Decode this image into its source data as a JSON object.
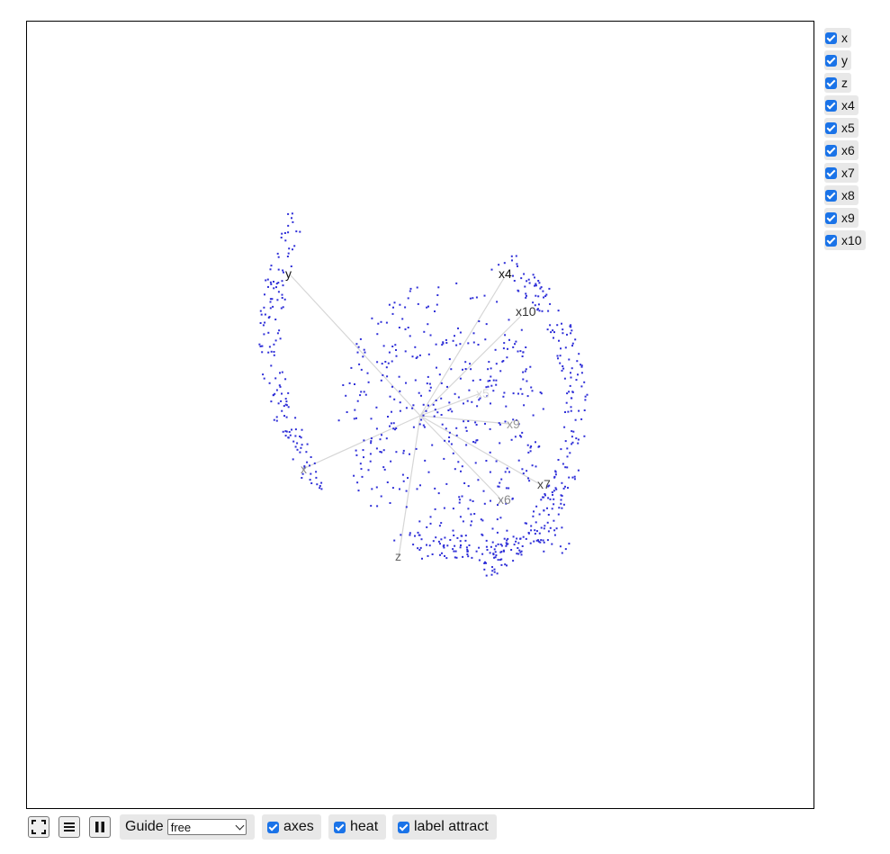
{
  "variables": [
    {
      "label": "x",
      "checked": true
    },
    {
      "label": "y",
      "checked": true
    },
    {
      "label": "z",
      "checked": true
    },
    {
      "label": "x4",
      "checked": true
    },
    {
      "label": "x5",
      "checked": true
    },
    {
      "label": "x6",
      "checked": true
    },
    {
      "label": "x7",
      "checked": true
    },
    {
      "label": "x8",
      "checked": true
    },
    {
      "label": "x9",
      "checked": true
    },
    {
      "label": "x10",
      "checked": true
    }
  ],
  "toolbar": {
    "fullscreen_icon": "fullscreen-icon",
    "menu_icon": "menu-icon",
    "pause_icon": "pause-icon",
    "guide_label": "Guide",
    "guide_value": "free",
    "axes_label": "axes",
    "axes_checked": true,
    "heat_label": "heat",
    "heat_checked": true,
    "label_attract_label": "label attract",
    "label_attract_checked": true
  },
  "plot": {
    "point_color": "#2f2fd8",
    "axis_color": "#d6d6d6",
    "axis_labels": [
      "y",
      "x4",
      "x10",
      "x5",
      "x9",
      "x",
      "x7",
      "x6",
      "z"
    ]
  }
}
